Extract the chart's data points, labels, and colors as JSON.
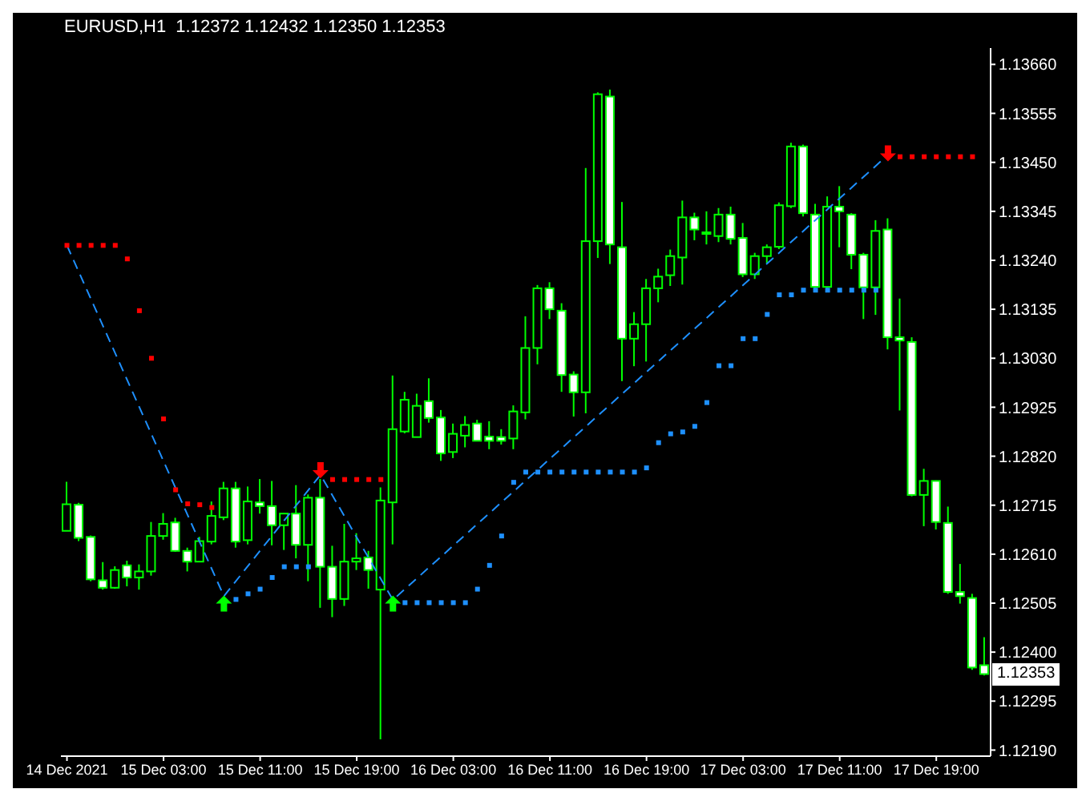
{
  "chart_data": {
    "type": "candlestick",
    "title": "EURUSD,H1  1.12372 1.12432 1.12350 1.12353",
    "color": "#00ff00",
    "categories": [
      "14 Dec 2021",
      null,
      null,
      null,
      null,
      null,
      null,
      null,
      "15 Dec 03:00",
      null,
      null,
      null,
      null,
      null,
      null,
      null,
      "15 Dec 11:00",
      null,
      null,
      null,
      null,
      null,
      null,
      null,
      "15 Dec 19:00",
      null,
      null,
      null,
      null,
      null,
      null,
      null,
      "16 Dec 03:00",
      null,
      null,
      null,
      null,
      null,
      null,
      null,
      "16 Dec 11:00",
      null,
      null,
      null,
      null,
      null,
      null,
      null,
      "16 Dec 19:00",
      null,
      null,
      null,
      null,
      null,
      null,
      null,
      "17 Dec 03:00",
      null,
      null,
      null,
      null,
      null,
      null,
      null,
      "17 Dec 11:00",
      null,
      null,
      null,
      null,
      null,
      null,
      null,
      "17 Dec 19:00",
      null,
      null,
      null,
      null
    ],
    "ohlc": [
      [
        1.1266,
        1.12765,
        1.1266,
        1.12717
      ],
      [
        1.12716,
        1.1272,
        1.12638,
        1.12645
      ],
      [
        1.12647,
        1.1265,
        1.12552,
        1.12556
      ],
      [
        1.12554,
        1.12593,
        1.12534,
        1.12538
      ],
      [
        1.12538,
        1.12584,
        1.12536,
        1.12576
      ],
      [
        1.12586,
        1.12596,
        1.12541,
        1.1256
      ],
      [
        1.1256,
        1.12588,
        1.12534,
        1.12573
      ],
      [
        1.12573,
        1.12679,
        1.12564,
        1.12649
      ],
      [
        1.12649,
        1.12698,
        1.12641,
        1.12675
      ],
      [
        1.12678,
        1.12688,
        1.12615,
        1.12617
      ],
      [
        1.12617,
        1.12624,
        1.12573,
        1.12594
      ],
      [
        1.12594,
        1.12647,
        1.12593,
        1.12638
      ],
      [
        1.12637,
        1.12723,
        1.12631,
        1.12692
      ],
      [
        1.12689,
        1.12765,
        1.12683,
        1.12751
      ],
      [
        1.12751,
        1.12765,
        1.12624,
        1.12637
      ],
      [
        1.1264,
        1.12755,
        1.12631,
        1.12723
      ],
      [
        1.12721,
        1.12771,
        1.12697,
        1.12713
      ],
      [
        1.12713,
        1.12767,
        1.12629,
        1.12672
      ],
      [
        1.12672,
        1.12698,
        1.12619,
        1.12697
      ],
      [
        1.12697,
        1.12758,
        1.12601,
        1.1263
      ],
      [
        1.1263,
        1.12738,
        1.12552,
        1.12731
      ],
      [
        1.12731,
        1.12771,
        1.12495,
        1.12583
      ],
      [
        1.12583,
        1.12628,
        1.12475,
        1.12514
      ],
      [
        1.12514,
        1.12675,
        1.12499,
        1.12594
      ],
      [
        1.12594,
        1.12655,
        1.12576,
        1.12601
      ],
      [
        1.12603,
        1.12617,
        1.12536,
        1.12576
      ],
      [
        1.12534,
        1.12753,
        1.12213,
        1.12725
      ],
      [
        1.12721,
        1.12993,
        1.12631,
        1.12878
      ],
      [
        1.12873,
        1.12958,
        1.12869,
        1.12941
      ],
      [
        1.12861,
        1.12954,
        1.12861,
        1.12928
      ],
      [
        1.12938,
        1.12987,
        1.12892,
        1.12902
      ],
      [
        1.12903,
        1.12919,
        1.1281,
        1.12826
      ],
      [
        1.12829,
        1.1289,
        1.12816,
        1.12868
      ],
      [
        1.12864,
        1.12906,
        1.12839,
        1.12887
      ],
      [
        1.1289,
        1.12898,
        1.12853,
        1.12853
      ],
      [
        1.12862,
        1.12895,
        1.12835,
        1.12853
      ],
      [
        1.12861,
        1.12878,
        1.12845,
        1.12853
      ],
      [
        1.12858,
        1.12929,
        1.12835,
        1.12916
      ],
      [
        1.12914,
        1.1312,
        1.12899,
        1.13052
      ],
      [
        1.13052,
        1.13187,
        1.13017,
        1.1318
      ],
      [
        1.1318,
        1.13193,
        1.13114,
        1.13135
      ],
      [
        1.13132,
        1.13148,
        1.12958,
        1.12994
      ],
      [
        1.12995,
        1.13002,
        1.12905,
        1.12957
      ],
      [
        1.12957,
        1.13438,
        1.12912,
        1.13281
      ],
      [
        1.13281,
        1.136,
        1.13245,
        1.13596
      ],
      [
        1.13591,
        1.13606,
        1.13232,
        1.13274
      ],
      [
        1.13268,
        1.13365,
        1.12981,
        1.13072
      ],
      [
        1.13072,
        1.13129,
        1.13013,
        1.13103
      ],
      [
        1.13103,
        1.132,
        1.13023,
        1.1318
      ],
      [
        1.1318,
        1.13222,
        1.1315,
        1.13205
      ],
      [
        1.13208,
        1.13263,
        1.13185,
        1.13249
      ],
      [
        1.13246,
        1.13368,
        1.13188,
        1.13332
      ],
      [
        1.13332,
        1.13342,
        1.13283,
        1.13306
      ],
      [
        1.133,
        1.13345,
        1.13274,
        1.133
      ],
      [
        1.13292,
        1.13352,
        1.13279,
        1.13338
      ],
      [
        1.13338,
        1.13355,
        1.13274,
        1.13286
      ],
      [
        1.13288,
        1.1332,
        1.13204,
        1.1321
      ],
      [
        1.1321,
        1.13256,
        1.132,
        1.13249
      ],
      [
        1.13249,
        1.13274,
        1.13234,
        1.13268
      ],
      [
        1.13269,
        1.13364,
        1.13264,
        1.13358
      ],
      [
        1.13356,
        1.13492,
        1.13352,
        1.13484
      ],
      [
        1.13484,
        1.13488,
        1.13334,
        1.13341
      ],
      [
        1.13338,
        1.13361,
        1.1318,
        1.13183
      ],
      [
        1.13183,
        1.13377,
        1.1318,
        1.13355
      ],
      [
        1.13355,
        1.13399,
        1.13268,
        1.13345
      ],
      [
        1.13338,
        1.13341,
        1.13221,
        1.13252
      ],
      [
        1.13252,
        1.13256,
        1.13114,
        1.13182
      ],
      [
        1.13182,
        1.13326,
        1.13123,
        1.13303
      ],
      [
        1.13306,
        1.1333,
        1.13049,
        1.13075
      ],
      [
        1.13075,
        1.13158,
        1.12918,
        1.13068
      ],
      [
        1.13065,
        1.13075,
        1.12734,
        1.12737
      ],
      [
        1.12737,
        1.12793,
        1.1267,
        1.12767
      ],
      [
        1.12767,
        1.12768,
        1.12663,
        1.12679
      ],
      [
        1.12677,
        1.12712,
        1.12525,
        1.12529
      ],
      [
        1.12529,
        1.12589,
        1.12504,
        1.1252
      ],
      [
        1.12516,
        1.12525,
        1.12362,
        1.12367
      ],
      [
        1.12372,
        1.12432,
        1.1235,
        1.12353
      ]
    ],
    "series": [
      {
        "type": "scatter",
        "color": "#ff0000",
        "marker": "square",
        "values": [
          1.13272,
          1.13272,
          1.13272,
          1.13272,
          1.13272,
          1.13243,
          1.13132,
          1.1303,
          1.129,
          1.12748,
          1.12718,
          1.12716,
          1.1271,
          null,
          null,
          null,
          null,
          null,
          null,
          null,
          null,
          null,
          1.1277,
          1.1277,
          1.1277,
          1.1277,
          1.1277,
          null,
          null,
          null,
          null,
          null,
          null,
          null,
          null,
          null,
          null,
          null,
          null,
          null,
          null,
          null,
          null,
          null,
          null,
          null,
          null,
          null,
          null,
          null,
          null,
          null,
          null,
          null,
          null,
          null,
          null,
          null,
          null,
          null,
          null,
          null,
          null,
          null,
          null,
          null,
          null,
          null,
          null,
          1.13462,
          1.13462,
          1.13462,
          1.13462,
          1.13462,
          1.13462,
          1.13462,
          null
        ]
      },
      {
        "type": "scatter",
        "color": "#1e90ff",
        "marker": "square",
        "values": [
          null,
          null,
          null,
          null,
          null,
          null,
          null,
          null,
          null,
          null,
          null,
          null,
          null,
          null,
          1.12513,
          1.12525,
          1.12535,
          1.1256,
          1.12583,
          1.12583,
          1.12583,
          null,
          null,
          null,
          null,
          null,
          null,
          null,
          1.12506,
          1.12506,
          1.12506,
          1.12506,
          1.12506,
          1.12506,
          1.12535,
          1.12586,
          1.12649,
          1.12764,
          1.12786,
          1.12786,
          1.12786,
          1.12786,
          1.12786,
          1.12786,
          1.12786,
          1.12786,
          1.12786,
          1.12786,
          1.12795,
          1.12849,
          1.12868,
          1.12872,
          1.12884,
          1.12935,
          1.13014,
          1.13014,
          1.13072,
          1.13072,
          1.13124,
          1.13166,
          1.13166,
          1.13176,
          1.13176,
          1.13176,
          1.13176,
          1.13176,
          1.13176,
          1.13176,
          null,
          null,
          null,
          null,
          null,
          null,
          null,
          null,
          null
        ]
      },
      {
        "type": "line",
        "color": "#1e90ff",
        "line_style": "dashed",
        "values": [
          1.13272,
          null,
          null,
          null,
          null,
          null,
          null,
          null,
          null,
          null,
          null,
          null,
          null,
          1.1252,
          null,
          null,
          null,
          null,
          null,
          null,
          null,
          1.1278,
          null,
          null,
          null,
          null,
          null,
          1.12512,
          null,
          null,
          null,
          null,
          null,
          null,
          null,
          null,
          null,
          null,
          null,
          null,
          null,
          null,
          null,
          null,
          null,
          null,
          null,
          null,
          null,
          null,
          null,
          null,
          null,
          null,
          null,
          null,
          null,
          null,
          null,
          null,
          null,
          null,
          null,
          null,
          null,
          null,
          null,
          null,
          1.13466,
          null,
          null,
          null,
          null,
          null,
          null,
          null,
          null
        ]
      },
      {
        "type": "scatter",
        "color": "#00ff00",
        "marker": "triangle",
        "values": [
          null,
          null,
          null,
          null,
          null,
          null,
          null,
          null,
          null,
          null,
          null,
          null,
          null,
          1.12504,
          null,
          null,
          null,
          null,
          null,
          null,
          null,
          null,
          null,
          null,
          null,
          null,
          null,
          1.12504,
          null,
          null,
          null,
          null,
          null,
          null,
          null,
          null,
          null,
          null,
          null,
          null,
          null,
          null,
          null,
          null,
          null,
          null,
          null,
          null,
          null,
          null,
          null,
          null,
          null,
          null,
          null,
          null,
          null,
          null,
          null,
          null,
          null,
          null,
          null,
          null,
          null,
          null,
          null,
          null,
          null,
          null,
          null,
          null,
          null,
          null,
          null,
          null,
          null
        ]
      },
      {
        "type": "scatter",
        "color": "#ff0000",
        "marker": "triangle",
        "values": [
          null,
          null,
          null,
          null,
          null,
          null,
          null,
          null,
          null,
          null,
          null,
          null,
          null,
          null,
          null,
          null,
          null,
          null,
          null,
          null,
          null,
          1.1279,
          null,
          null,
          null,
          null,
          null,
          null,
          null,
          null,
          null,
          null,
          null,
          null,
          null,
          null,
          null,
          null,
          null,
          null,
          null,
          null,
          null,
          null,
          null,
          null,
          null,
          null,
          null,
          null,
          null,
          null,
          null,
          null,
          null,
          null,
          null,
          null,
          null,
          null,
          null,
          null,
          null,
          null,
          null,
          null,
          null,
          null,
          1.13469,
          null,
          null,
          null,
          null,
          null,
          null,
          null,
          null
        ]
      }
    ],
    "ylim": [
      1.12177,
      1.13695
    ],
    "yticks": [
      {
        "value": 1.1219,
        "label": "1.12190"
      },
      {
        "value": 1.12295,
        "label": "1.12295"
      },
      {
        "value": 1.124,
        "label": "1.12400"
      },
      {
        "value": 1.12505,
        "label": "1.12505"
      },
      {
        "value": 1.1261,
        "label": "1.12610"
      },
      {
        "value": 1.12715,
        "label": "1.12715"
      },
      {
        "value": 1.1282,
        "label": "1.12820"
      },
      {
        "value": 1.12925,
        "label": "1.12925"
      },
      {
        "value": 1.1303,
        "label": "1.13030"
      },
      {
        "value": 1.13135,
        "label": "1.13135"
      },
      {
        "value": 1.1324,
        "label": "1.13240"
      },
      {
        "value": 1.13345,
        "label": "1.13345"
      },
      {
        "value": 1.1345,
        "label": "1.13450"
      },
      {
        "value": 1.13555,
        "label": "1.13555"
      },
      {
        "value": 1.1366,
        "label": "1.13660"
      }
    ],
    "annotations": [
      {
        "text": "1.12353",
        "y": 1.12353
      }
    ]
  }
}
